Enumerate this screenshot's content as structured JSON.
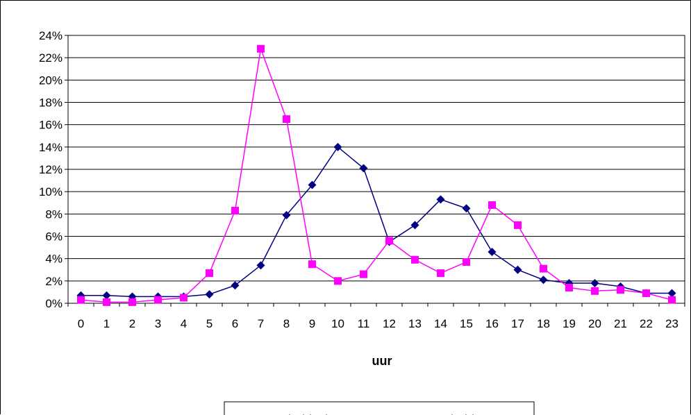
{
  "chart_data": {
    "type": "line",
    "title": "",
    "xlabel": "uur",
    "ylabel": "",
    "categories": [
      "0",
      "1",
      "2",
      "3",
      "4",
      "5",
      "6",
      "7",
      "8",
      "9",
      "10",
      "11",
      "12",
      "13",
      "14",
      "15",
      "16",
      "17",
      "18",
      "19",
      "20",
      "21",
      "22",
      "23"
    ],
    "y_ticks": [
      "0%",
      "2%",
      "4%",
      "6%",
      "8%",
      "10%",
      "12%",
      "14%",
      "16%",
      "18%",
      "20%",
      "22%",
      "24%"
    ],
    "ylim": [
      0,
      24
    ],
    "grid": true,
    "legend_position": "bottom",
    "series": [
      {
        "name": "arbeidsplaats",
        "color": "#000080",
        "marker": "diamond",
        "values": [
          0.7,
          0.7,
          0.6,
          0.6,
          0.6,
          0.8,
          1.6,
          3.4,
          7.9,
          10.6,
          14.0,
          12.1,
          5.5,
          7.0,
          9.3,
          8.5,
          4.6,
          3.0,
          2.1,
          1.8,
          1.8,
          1.5,
          0.9,
          0.9
        ]
      },
      {
        "name": "arbeidsweg",
        "color": "#ff00ff",
        "marker": "square",
        "values": [
          0.3,
          0.1,
          0.1,
          0.3,
          0.5,
          2.7,
          8.3,
          22.8,
          16.5,
          3.5,
          2.0,
          2.6,
          5.6,
          3.9,
          2.7,
          3.7,
          8.8,
          7.0,
          3.1,
          1.4,
          1.1,
          1.2,
          0.9,
          0.3
        ]
      }
    ]
  }
}
